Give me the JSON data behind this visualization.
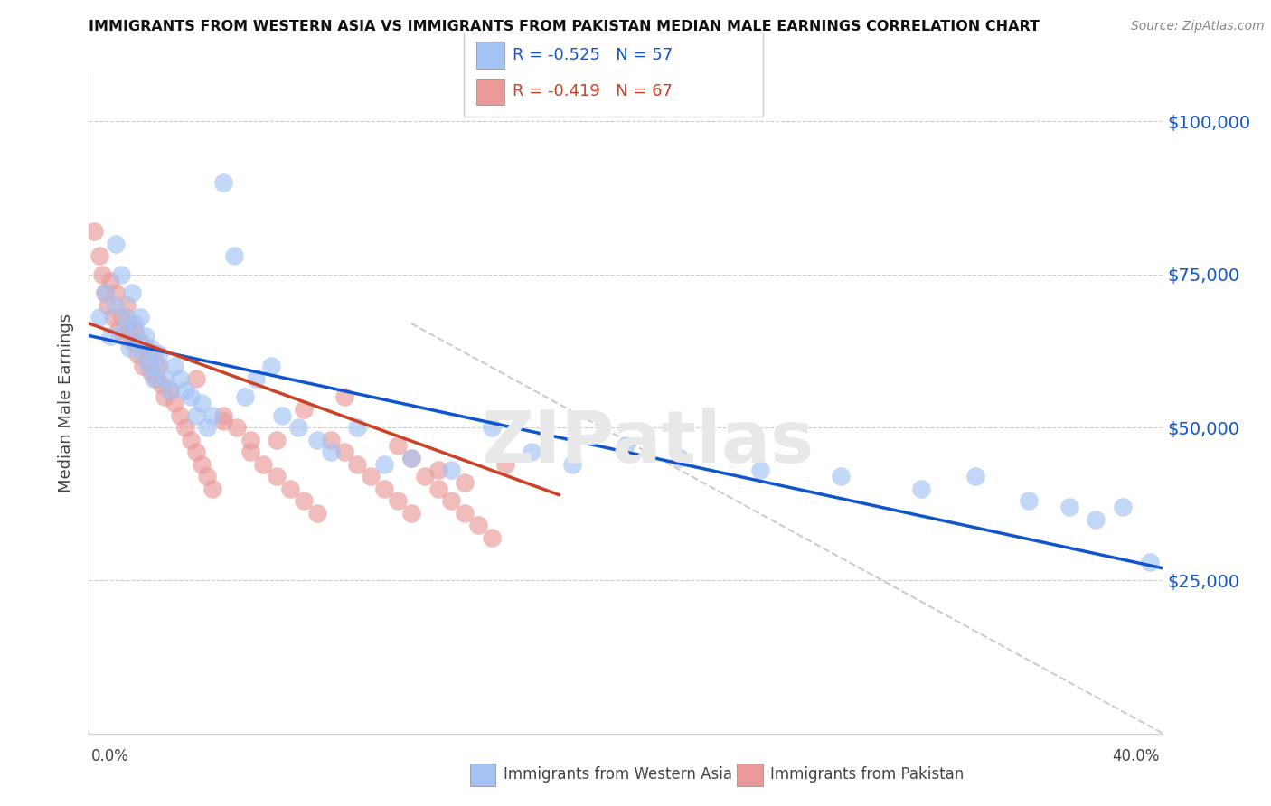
{
  "title": "IMMIGRANTS FROM WESTERN ASIA VS IMMIGRANTS FROM PAKISTAN MEDIAN MALE EARNINGS CORRELATION CHART",
  "source": "Source: ZipAtlas.com",
  "ylabel": "Median Male Earnings",
  "y_ticks": [
    0,
    25000,
    50000,
    75000,
    100000
  ],
  "y_tick_labels": [
    "",
    "$25,000",
    "$50,000",
    "$75,000",
    "$100,000"
  ],
  "x_min": 0.0,
  "x_max": 0.4,
  "y_min": 0,
  "y_max": 108000,
  "legend_blue_r": "-0.525",
  "legend_blue_n": "57",
  "legend_pink_r": "-0.419",
  "legend_pink_n": "67",
  "legend_blue_label": "Immigrants from Western Asia",
  "legend_pink_label": "Immigrants from Pakistan",
  "blue_color": "#a4c2f4",
  "pink_color": "#ea9999",
  "line_blue_color": "#1155cc",
  "line_pink_color": "#cc4125",
  "line_dash_color": "#cccccc",
  "watermark": "ZIPatlas",
  "blue_scatter_x": [
    0.004,
    0.006,
    0.008,
    0.01,
    0.01,
    0.012,
    0.013,
    0.014,
    0.015,
    0.016,
    0.017,
    0.018,
    0.019,
    0.02,
    0.021,
    0.022,
    0.023,
    0.024,
    0.025,
    0.026,
    0.028,
    0.03,
    0.032,
    0.034,
    0.036,
    0.038,
    0.04,
    0.042,
    0.044,
    0.046,
    0.05,
    0.054,
    0.058,
    0.062,
    0.068,
    0.072,
    0.078,
    0.085,
    0.09,
    0.1,
    0.11,
    0.12,
    0.135,
    0.15,
    0.165,
    0.18,
    0.2,
    0.22,
    0.25,
    0.28,
    0.31,
    0.33,
    0.35,
    0.365,
    0.375,
    0.385,
    0.395
  ],
  "blue_scatter_y": [
    68000,
    72000,
    65000,
    80000,
    70000,
    75000,
    66000,
    68000,
    63000,
    72000,
    67000,
    64000,
    68000,
    62000,
    65000,
    60000,
    63000,
    58000,
    60000,
    62000,
    58000,
    56000,
    60000,
    58000,
    56000,
    55000,
    52000,
    54000,
    50000,
    52000,
    90000,
    78000,
    55000,
    58000,
    60000,
    52000,
    50000,
    48000,
    46000,
    50000,
    44000,
    45000,
    43000,
    50000,
    46000,
    44000,
    47000,
    45000,
    43000,
    42000,
    40000,
    42000,
    38000,
    37000,
    35000,
    37000,
    28000
  ],
  "pink_scatter_x": [
    0.002,
    0.004,
    0.005,
    0.006,
    0.007,
    0.008,
    0.009,
    0.01,
    0.011,
    0.012,
    0.013,
    0.014,
    0.015,
    0.016,
    0.017,
    0.018,
    0.019,
    0.02,
    0.021,
    0.022,
    0.023,
    0.024,
    0.025,
    0.026,
    0.027,
    0.028,
    0.03,
    0.032,
    0.034,
    0.036,
    0.038,
    0.04,
    0.042,
    0.044,
    0.046,
    0.05,
    0.055,
    0.06,
    0.065,
    0.07,
    0.075,
    0.08,
    0.085,
    0.09,
    0.095,
    0.1,
    0.105,
    0.11,
    0.115,
    0.12,
    0.125,
    0.13,
    0.135,
    0.14,
    0.145,
    0.15,
    0.155,
    0.115,
    0.13,
    0.14,
    0.12,
    0.095,
    0.08,
    0.06,
    0.07,
    0.05,
    0.04
  ],
  "pink_scatter_y": [
    82000,
    78000,
    75000,
    72000,
    70000,
    74000,
    68000,
    72000,
    66000,
    68000,
    65000,
    70000,
    67000,
    64000,
    66000,
    62000,
    64000,
    60000,
    63000,
    61000,
    59000,
    62000,
    58000,
    60000,
    57000,
    55000,
    56000,
    54000,
    52000,
    50000,
    48000,
    46000,
    44000,
    42000,
    40000,
    52000,
    50000,
    48000,
    44000,
    42000,
    40000,
    38000,
    36000,
    48000,
    46000,
    44000,
    42000,
    40000,
    38000,
    36000,
    42000,
    40000,
    38000,
    36000,
    34000,
    32000,
    44000,
    47000,
    43000,
    41000,
    45000,
    55000,
    53000,
    46000,
    48000,
    51000,
    58000
  ],
  "blue_line_x0": 0.0,
  "blue_line_x1": 0.4,
  "blue_line_y0": 65000,
  "blue_line_y1": 27000,
  "pink_line_x0": 0.0,
  "pink_line_x1": 0.175,
  "pink_line_y0": 67000,
  "pink_line_y1": 39000,
  "dash_line_x0": 0.12,
  "dash_line_x1": 0.4,
  "dash_line_y0": 67000,
  "dash_line_y1": 0
}
